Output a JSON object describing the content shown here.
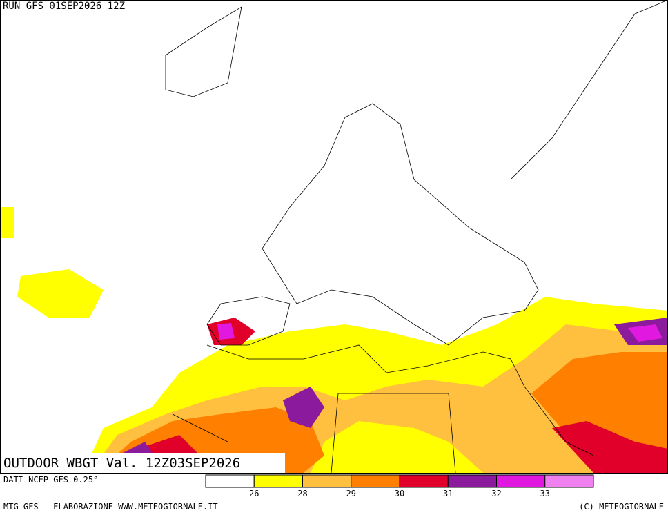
{
  "header": {
    "run": "RUN GFS 01SEP2026 12Z"
  },
  "map": {
    "title": "OUTDOOR WBGT Val. 12Z03SEP2026"
  },
  "legend": {
    "source": "DATI NCEP GFS 0.25°",
    "thresholds": [
      26,
      28,
      29,
      30,
      31,
      32,
      33
    ],
    "colors": [
      "#ffffff",
      "#ffff00",
      "#ffbf3f",
      "#ff8000",
      "#e0002a",
      "#8c1a9c",
      "#e018e0",
      "#f080f0"
    ]
  },
  "footer": {
    "left": "MTG-GFS — ELABORAZIONE WWW.METEOGIORNALE.IT",
    "right": "(C) METEOGIORNALE"
  }
}
